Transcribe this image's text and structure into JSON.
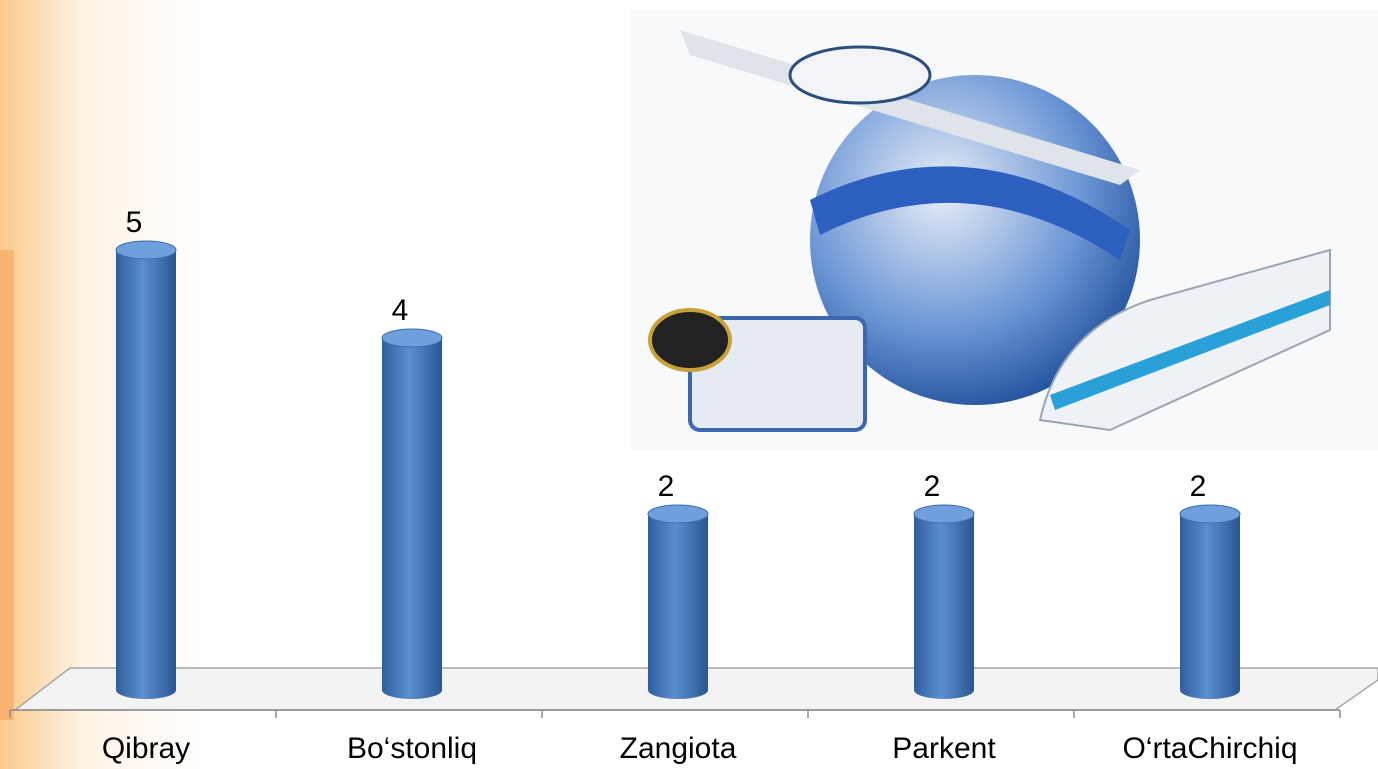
{
  "chart_data": {
    "type": "bar3d",
    "categories": [
      "Qibray",
      "Bo‘stonliq",
      "Zangiota",
      "Parkent",
      "O‘rtaChirchiq"
    ],
    "values": [
      5,
      4,
      2,
      2,
      2
    ],
    "color": "#4a7ebb"
  }
}
